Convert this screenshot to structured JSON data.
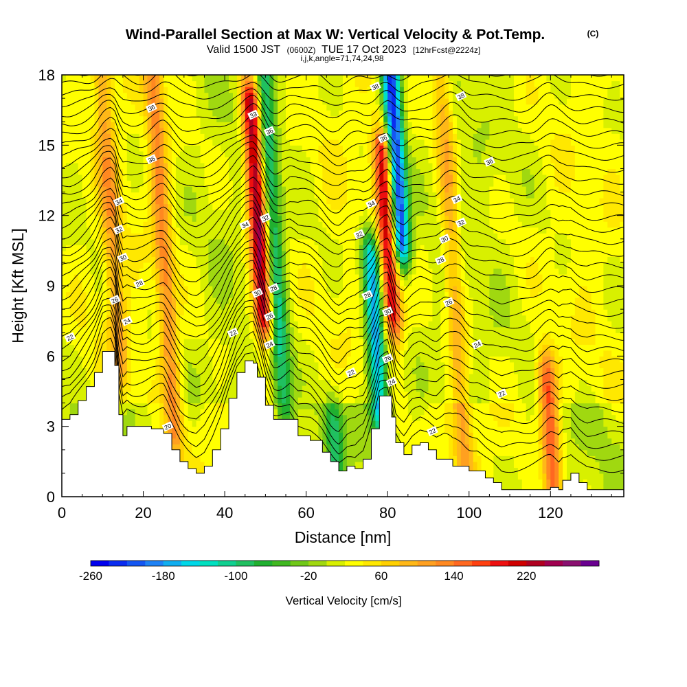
{
  "header": {
    "title": "Wind-Parallel Section at Max W: Vertical Velocity & Pot.Temp.",
    "copyright": "(C)",
    "valid_prefix": "Valid 1500 JST",
    "valid_utc": "(0600Z)",
    "valid_date": "TUE 17 Oct 2023",
    "forecast": "[12hrFcst@2224z]",
    "grid_info": "i,j,k,angle=71,74,24,98"
  },
  "chart_data": {
    "type": "heatmap",
    "xlabel": "Distance [nm]",
    "ylabel": "Height [Kft MSL]",
    "xlim": [
      0,
      138
    ],
    "ylim": [
      0,
      18
    ],
    "x_ticks": [
      0,
      20,
      40,
      60,
      80,
      100,
      120
    ],
    "y_ticks": [
      0,
      3,
      6,
      9,
      12,
      15,
      18
    ],
    "colorbar": {
      "title": "Vertical Velocity [cm/s]",
      "min": -260,
      "max": 300,
      "step": 20,
      "tick_labels": [
        -260,
        -180,
        -100,
        -20,
        60,
        140,
        220
      ],
      "colors": [
        "#0000ee",
        "#0a2cf0",
        "#1456f2",
        "#1e82f5",
        "#10aef0",
        "#00d8e8",
        "#00e0c0",
        "#10d090",
        "#20c060",
        "#20b030",
        "#40b820",
        "#70c818",
        "#a0d810",
        "#d8f000",
        "#ffff00",
        "#ffe800",
        "#ffd000",
        "#ffb818",
        "#ffa020",
        "#ff8820",
        "#ff6820",
        "#ff4010",
        "#ee1010",
        "#d00000",
        "#b00020",
        "#a00050",
        "#8a1070",
        "#6a0090"
      ]
    },
    "theta_contours": {
      "levels": [
        20,
        22,
        24,
        26,
        28,
        30,
        32,
        34,
        36,
        38
      ],
      "labels": [
        {
          "text": "22",
          "x": 2,
          "y": 6.8
        },
        {
          "text": "24",
          "x": 16,
          "y": 7.5
        },
        {
          "text": "26",
          "x": 13,
          "y": 8.4
        },
        {
          "text": "28",
          "x": 19,
          "y": 9.1
        },
        {
          "text": "30",
          "x": 15,
          "y": 10.2
        },
        {
          "text": "32",
          "x": 14,
          "y": 11.4
        },
        {
          "text": "34",
          "x": 14,
          "y": 12.6
        },
        {
          "text": "36",
          "x": 22,
          "y": 14.4
        },
        {
          "text": "36",
          "x": 22,
          "y": 16.6
        },
        {
          "text": "20",
          "x": 26,
          "y": 3.0
        },
        {
          "text": "22",
          "x": 42,
          "y": 7.0
        },
        {
          "text": "34",
          "x": 45,
          "y": 11.6
        },
        {
          "text": "33",
          "x": 47,
          "y": 16.3
        },
        {
          "text": "36",
          "x": 51,
          "y": 15.6
        },
        {
          "text": "32",
          "x": 50,
          "y": 11.9
        },
        {
          "text": "30",
          "x": 48,
          "y": 8.7
        },
        {
          "text": "28",
          "x": 52,
          "y": 8.9
        },
        {
          "text": "26",
          "x": 51,
          "y": 7.7
        },
        {
          "text": "24",
          "x": 51,
          "y": 6.5
        },
        {
          "text": "22",
          "x": 71,
          "y": 5.3
        },
        {
          "text": "28",
          "x": 75,
          "y": 8.6
        },
        {
          "text": "32",
          "x": 73,
          "y": 11.2
        },
        {
          "text": "34",
          "x": 76,
          "y": 12.5
        },
        {
          "text": "36",
          "x": 79,
          "y": 15.3
        },
        {
          "text": "38",
          "x": 77,
          "y": 17.5
        },
        {
          "text": "30",
          "x": 80,
          "y": 7.9
        },
        {
          "text": "26",
          "x": 80,
          "y": 5.9
        },
        {
          "text": "24",
          "x": 81,
          "y": 4.9
        },
        {
          "text": "22",
          "x": 91,
          "y": 2.8
        },
        {
          "text": "38",
          "x": 98,
          "y": 17.1
        },
        {
          "text": "36",
          "x": 105,
          "y": 14.3
        },
        {
          "text": "34",
          "x": 97,
          "y": 12.7
        },
        {
          "text": "32",
          "x": 98,
          "y": 11.7
        },
        {
          "text": "30",
          "x": 94,
          "y": 11.0
        },
        {
          "text": "28",
          "x": 93,
          "y": 10.1
        },
        {
          "text": "26",
          "x": 95,
          "y": 8.3
        },
        {
          "text": "24",
          "x": 102,
          "y": 6.5
        },
        {
          "text": "22",
          "x": 108,
          "y": 4.4
        }
      ]
    },
    "terrain_kft": [
      [
        0,
        3.3
      ],
      [
        2,
        3.5
      ],
      [
        4,
        4.1
      ],
      [
        6,
        4.7
      ],
      [
        8,
        5.3
      ],
      [
        10,
        6.2
      ],
      [
        12,
        6.2
      ],
      [
        13,
        5.6
      ],
      [
        14,
        3.5
      ],
      [
        15,
        2.6
      ],
      [
        16,
        3.0
      ],
      [
        19,
        3.0
      ],
      [
        22,
        2.9
      ],
      [
        25,
        2.7
      ],
      [
        27,
        2.0
      ],
      [
        29,
        1.5
      ],
      [
        31,
        1.2
      ],
      [
        33,
        1.0
      ],
      [
        35,
        1.3
      ],
      [
        37,
        2.0
      ],
      [
        39,
        2.9
      ],
      [
        41,
        4.2
      ],
      [
        43,
        5.3
      ],
      [
        45,
        5.8
      ],
      [
        47,
        5.7
      ],
      [
        48,
        5.1
      ],
      [
        50,
        3.9
      ],
      [
        52,
        3.3
      ],
      [
        56,
        3.3
      ],
      [
        58,
        2.6
      ],
      [
        61,
        2.4
      ],
      [
        64,
        1.9
      ],
      [
        66,
        1.5
      ],
      [
        68,
        1.1
      ],
      [
        70,
        1.3
      ],
      [
        72,
        1.2
      ],
      [
        74,
        1.6
      ],
      [
        76,
        2.9
      ],
      [
        78,
        4.3
      ],
      [
        80,
        4.3
      ],
      [
        81,
        3.4
      ],
      [
        82,
        2.3
      ],
      [
        84,
        1.8
      ],
      [
        86,
        2.2
      ],
      [
        88,
        2.3
      ],
      [
        90,
        2.0
      ],
      [
        92,
        1.6
      ],
      [
        94,
        1.6
      ],
      [
        96,
        1.3
      ],
      [
        98,
        1.3
      ],
      [
        100,
        1.1
      ],
      [
        102,
        1.1
      ],
      [
        104,
        0.8
      ],
      [
        106,
        0.6
      ],
      [
        108,
        0.3
      ],
      [
        118,
        0.3
      ],
      [
        120,
        0.4
      ],
      [
        122,
        0.3
      ],
      [
        123,
        0.7
      ],
      [
        125,
        1.0
      ],
      [
        127,
        0.6
      ],
      [
        129,
        0.3
      ],
      [
        138,
        0.3
      ]
    ],
    "updraft_cores": [
      {
        "x": 48,
        "y_top": 16.5,
        "y_bottom": 8.0,
        "w_max": 240
      },
      {
        "x": 80,
        "y_top": 14.5,
        "y_bottom": 8.0,
        "w_max": 200
      },
      {
        "x": 12,
        "y_top": 18.0,
        "y_bottom": 6.0,
        "w_max": 80
      },
      {
        "x": 25,
        "y_top": 18.0,
        "y_bottom": 3.0,
        "w_max": 100
      },
      {
        "x": 96,
        "y_top": 18.0,
        "y_bottom": 2.0,
        "w_max": 80
      },
      {
        "x": 120,
        "y_top": 5.0,
        "y_bottom": 0.3,
        "w_max": 140
      }
    ],
    "downdraft_cores": [
      {
        "x": 52,
        "y_top": 18.0,
        "y_bottom": 4.0,
        "w_min": -120
      },
      {
        "x": 82,
        "y_top": 18.0,
        "y_bottom": 11.0,
        "w_min": -260
      },
      {
        "x": 77,
        "y_top": 10.0,
        "y_bottom": 4.0,
        "w_min": -200
      },
      {
        "x": 67,
        "y_top": 3.0,
        "y_bottom": 1.5,
        "w_min": -100
      }
    ]
  }
}
